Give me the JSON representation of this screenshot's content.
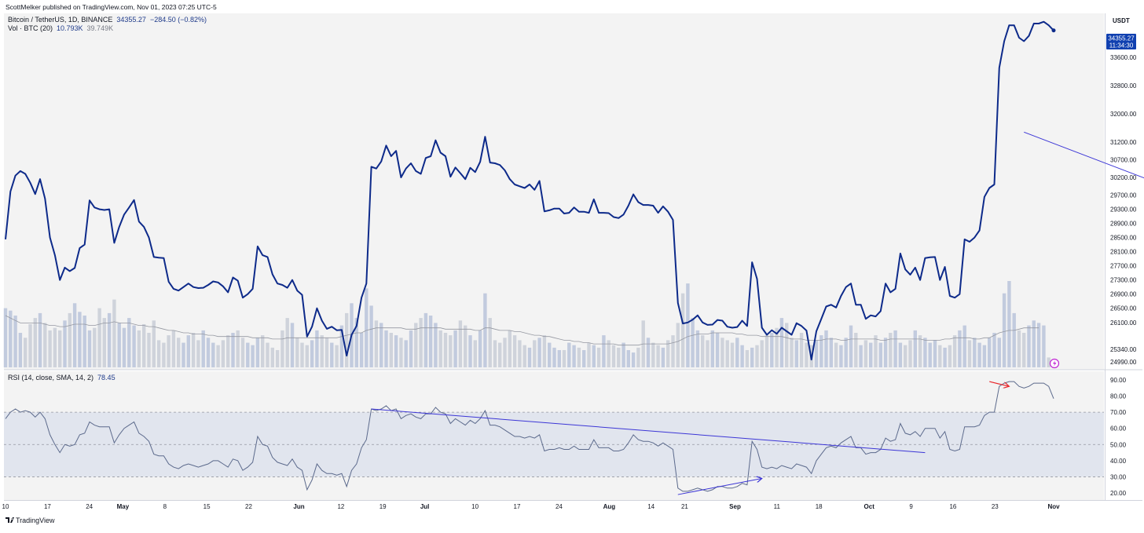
{
  "publisher_line": "ScottMelker published on TradingView.com, Nov 01, 2023 07:25 UTC-5",
  "symbol_line": "Bitcoin / TetherUS, 1D, BINANCE",
  "price_line": {
    "last": "34355.27",
    "change": "−284.50 (−0.82%)"
  },
  "volume_legend": {
    "label": "Vol · BTC (20)",
    "value1": "10.793K",
    "value2": "39.749K"
  },
  "rsi_legend": {
    "label": "RSI (14, close, SMA, 14, 2)",
    "value": "78.45"
  },
  "currency_badge": "USDT",
  "last_price_badge": {
    "price": "34355.27",
    "countdown": "11:34:30"
  },
  "footer_logo_text": "TradingView",
  "colors": {
    "price_line": "#0d2a8a",
    "volume_bar": "#c8ccd6",
    "volume_bar_alt": "#b9c3d9",
    "trendline": "#3b35d6",
    "divergence_arrow": "#e8262b",
    "rsi_line": "#5c6a8c",
    "rsi_band": "#e1e5ee",
    "background": "#f3f3f3"
  },
  "chart_data": [
    {
      "type": "line",
      "title": "Bitcoin / TetherUS, 1D, BINANCE",
      "x_tick_labels": [
        "10",
        "17",
        "24",
        "May",
        "8",
        "15",
        "22",
        "Jun",
        "12",
        "19",
        "Jul",
        "10",
        "17",
        "24",
        "Aug",
        "14",
        "21",
        "Sep",
        "11",
        "18",
        "Oct",
        "9",
        "16",
        "23",
        "Nov"
      ],
      "y_tick_labels": [
        "24990.00",
        "25340.00",
        "26100.00",
        "26500.00",
        "26900.00",
        "27300.00",
        "27700.00",
        "28100.00",
        "28500.00",
        "28900.00",
        "29300.00",
        "29700.00",
        "30200.00",
        "30700.00",
        "31200.00",
        "32000.00",
        "32800.00",
        "33600.00"
      ],
      "series": [
        {
          "values": [
            28450,
            29800,
            30250,
            30380,
            30300,
            30050,
            29730,
            30150,
            29600,
            28500,
            28000,
            27300,
            27650,
            27550,
            27640,
            28200,
            28300,
            29550,
            29350,
            29300,
            29280,
            29300,
            28350,
            28800,
            29150,
            29350,
            29560,
            28950,
            28800,
            28500,
            27950,
            27930,
            27920,
            27250,
            27050,
            27000,
            27100,
            27200,
            27100,
            27070,
            27080,
            27160,
            27260,
            27230,
            27120,
            26950,
            27370,
            27280,
            26800,
            26900,
            27050,
            28250,
            28000,
            27950,
            27460,
            27200,
            27160,
            27080,
            27300,
            27000,
            26880,
            25700,
            25980,
            26500,
            26150,
            25920,
            25980,
            25880,
            25890,
            25160,
            25750,
            26000,
            26800,
            27200,
            30500,
            30450,
            30650,
            31100,
            30800,
            30950,
            30200,
            30450,
            30600,
            30380,
            30300,
            30750,
            30800,
            31250,
            30900,
            30800,
            30220,
            30480,
            30320,
            30150,
            30470,
            30350,
            30640,
            31350,
            30620,
            30600,
            30550,
            30400,
            30150,
            30000,
            29950,
            29900,
            30000,
            29850,
            30100,
            29240,
            29270,
            29320,
            29320,
            29180,
            29200,
            29350,
            29230,
            29230,
            29200,
            29580,
            29200,
            29200,
            29190,
            29080,
            29050,
            29150,
            29400,
            29720,
            29500,
            29420,
            29420,
            29400,
            29200,
            29380,
            29230,
            29000,
            26650,
            26070,
            26100,
            26180,
            26300,
            26100,
            26030,
            26040,
            26170,
            26150,
            25980,
            25950,
            25970,
            26150,
            26000,
            27800,
            27330,
            25950,
            25750,
            25880,
            25780,
            25950,
            25850,
            25750,
            26080,
            26000,
            25870,
            25050,
            25850,
            26200,
            26550,
            26600,
            26520,
            26850,
            27100,
            27200,
            26600,
            26600,
            26200,
            26300,
            26270,
            26420,
            27200,
            26950,
            27050,
            28050,
            27600,
            27450,
            27650,
            27300,
            27920,
            27940,
            27950,
            27300,
            27670,
            26850,
            26800,
            26900,
            28450,
            28380,
            28500,
            28700,
            29650,
            29900,
            30000,
            33300,
            34050,
            34500,
            34500,
            34150,
            34050,
            34200,
            34550,
            34550,
            34600,
            34500,
            34355.27
          ]
        }
      ],
      "volume_series": {
        "name": "Vol · BTC (20)",
        "values": [
          48,
          46,
          42,
          28,
          24,
          35,
          40,
          44,
          36,
          30,
          32,
          30,
          38,
          44,
          52,
          45,
          42,
          30,
          32,
          48,
          40,
          44,
          55,
          36,
          32,
          40,
          34,
          30,
          35,
          28,
          38,
          22,
          20,
          26,
          30,
          24,
          20,
          26,
          28,
          22,
          30,
          24,
          20,
          18,
          22,
          26,
          28,
          30,
          24,
          20,
          18,
          24,
          26,
          20,
          16,
          14,
          30,
          40,
          36,
          24,
          20,
          18,
          22,
          30,
          26,
          24,
          20,
          18,
          34,
          44,
          52,
          40,
          28,
          64,
          50,
          38,
          36,
          30,
          28,
          26,
          24,
          22,
          30,
          36,
          40,
          44,
          42,
          36,
          30,
          28,
          26,
          30,
          38,
          34,
          26,
          22,
          30,
          60,
          40,
          22,
          20,
          24,
          30,
          26,
          22,
          18,
          16,
          22,
          24,
          26,
          20,
          16,
          14,
          14,
          20,
          18,
          16,
          14,
          20,
          18,
          16,
          26,
          22,
          18,
          16,
          20,
          14,
          12,
          16,
          38,
          24,
          20,
          18,
          16,
          22,
          26,
          36,
          60,
          68,
          40,
          30,
          26,
          22,
          30,
          28,
          24,
          22,
          20,
          24,
          18,
          14,
          16,
          18,
          22,
          26,
          28,
          32,
          40,
          36,
          24,
          22,
          28,
          20,
          18,
          22,
          26,
          30,
          24,
          20,
          18,
          24,
          34,
          28,
          18,
          22,
          20,
          26,
          20,
          24,
          28,
          30,
          20,
          18,
          22,
          30,
          26,
          24,
          20,
          22,
          18,
          16,
          18,
          26,
          30,
          34,
          22,
          24,
          20,
          18,
          24,
          28,
          24,
          60,
          70,
          44,
          30,
          28,
          34,
          38,
          36,
          34,
          8
        ]
      },
      "volume_ma_values": [
        42,
        40,
        38,
        36,
        36,
        36,
        36,
        36,
        35,
        34,
        34,
        33,
        33,
        34,
        35,
        35,
        35,
        34,
        34,
        35,
        36,
        36,
        37,
        36,
        36,
        36,
        35,
        34,
        34,
        33,
        33,
        32,
        31,
        30,
        30,
        29,
        28,
        28,
        27,
        27,
        27,
        26,
        26,
        25,
        25,
        25,
        25,
        25,
        25,
        25,
        24,
        24,
        24,
        24,
        23,
        23,
        23,
        24,
        24,
        24,
        24,
        24,
        24,
        24,
        24,
        24,
        24,
        24,
        25,
        26,
        27,
        28,
        28,
        30,
        31,
        32,
        32,
        32,
        32,
        32,
        32,
        31,
        31,
        31,
        32,
        32,
        32,
        32,
        32,
        31,
        31,
        31,
        31,
        31,
        31,
        30,
        30,
        32,
        32,
        31,
        30,
        30,
        30,
        29,
        29,
        28,
        27,
        26,
        26,
        25,
        25,
        24,
        23,
        22,
        22,
        21,
        21,
        20,
        20,
        19,
        19,
        19,
        19,
        19,
        18,
        18,
        18,
        18,
        18,
        19,
        19,
        19,
        19,
        19,
        19,
        20,
        21,
        23,
        25,
        26,
        27,
        27,
        27,
        28,
        28,
        28,
        28,
        28,
        27,
        27,
        26,
        26,
        26,
        25,
        25,
        25,
        25,
        25,
        24,
        23,
        23,
        23,
        22,
        22,
        22,
        22,
        23,
        23,
        23,
        22,
        22,
        23,
        23,
        23,
        23,
        23,
        23,
        22,
        22,
        23,
        23,
        23,
        23,
        23,
        23,
        23,
        22,
        22,
        22,
        22,
        23,
        23,
        24,
        24,
        24,
        24,
        23,
        23,
        24,
        24,
        26,
        28,
        29,
        30,
        30,
        31,
        32,
        32,
        32,
        32
      ],
      "rsi_series": {
        "name": "RSI (14, close, SMA, 14, 2)",
        "values": [
          66,
          70,
          72,
          70,
          71,
          70,
          67,
          70,
          66,
          56,
          50,
          45,
          50,
          49,
          50,
          56,
          57,
          64,
          62,
          61,
          61,
          61,
          51,
          56,
          60,
          62,
          64,
          57,
          55,
          52,
          44,
          43,
          43,
          38,
          36,
          35,
          37,
          38,
          37,
          36,
          37,
          38,
          40,
          40,
          38,
          36,
          41,
          40,
          34,
          36,
          39,
          55,
          50,
          49,
          42,
          39,
          38,
          37,
          41,
          36,
          34,
          22,
          28,
          38,
          34,
          32,
          32,
          31,
          32,
          24,
          34,
          38,
          48,
          53,
          72,
          71,
          72,
          74,
          71,
          72,
          66,
          68,
          69,
          67,
          66,
          69,
          69,
          73,
          70,
          69,
          63,
          66,
          64,
          62,
          65,
          63,
          66,
          71,
          62,
          62,
          61,
          59,
          57,
          55,
          55,
          54,
          55,
          54,
          56,
          46,
          47,
          47,
          48,
          47,
          47,
          49,
          47,
          47,
          47,
          53,
          48,
          48,
          48,
          46,
          46,
          47,
          51,
          56,
          53,
          52,
          52,
          51,
          49,
          51,
          49,
          47,
          23,
          21,
          21,
          22,
          23,
          22,
          21,
          22,
          24,
          24,
          23,
          23,
          24,
          26,
          25,
          52,
          47,
          36,
          35,
          36,
          35,
          37,
          36,
          35,
          38,
          37,
          36,
          32,
          40,
          44,
          48,
          49,
          48,
          51,
          53,
          55,
          48,
          48,
          44,
          45,
          45,
          47,
          54,
          52,
          53,
          63,
          57,
          56,
          58,
          55,
          60,
          60,
          60,
          54,
          58,
          47,
          46,
          47,
          61,
          61,
          61,
          62,
          68,
          70,
          70,
          86,
          88,
          89,
          89,
          86,
          85,
          86,
          88,
          88,
          88,
          86,
          78.45
        ]
      },
      "rsi_levels": {
        "upper": 70,
        "middle": 50,
        "lower": 30
      },
      "rsi_y_tick_labels": [
        "20.00",
        "30.00",
        "40.00",
        "50.00",
        "60.00",
        "70.00",
        "80.00",
        "90.00"
      ],
      "annotations": [
        {
          "type": "trendline",
          "from": {
            "x": 206,
            "y": 31480
          },
          "to": {
            "x": 330,
            "y": 24870
          }
        },
        {
          "type": "arrow",
          "from": {
            "x": 297,
            "y": 25900
          },
          "to": {
            "x": 353,
            "y": 25250
          }
        },
        {
          "type": "arrow",
          "from": {
            "x": 448,
            "y": 34700
          },
          "to": {
            "x": 460,
            "y": 34900
          }
        }
      ]
    }
  ]
}
